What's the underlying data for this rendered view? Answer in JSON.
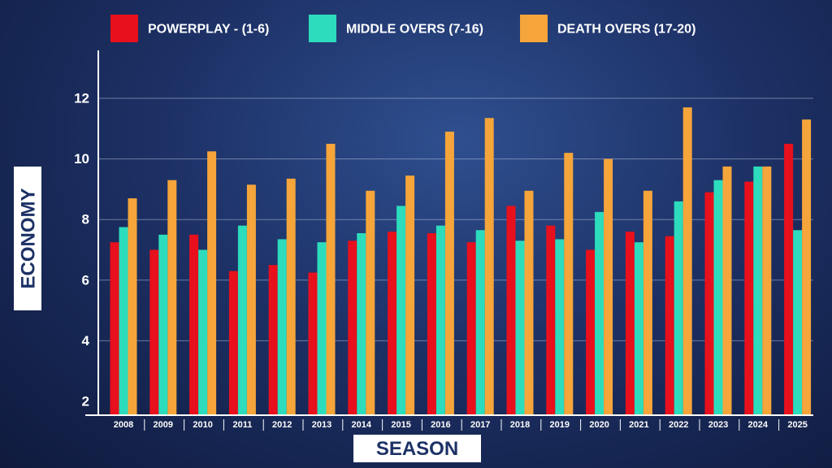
{
  "chart_data": {
    "type": "bar",
    "categories": [
      "2008",
      "2009",
      "2010",
      "2011",
      "2012",
      "2013",
      "2014",
      "2015",
      "2016",
      "2017",
      "2018",
      "2019",
      "2020",
      "2021",
      "2022",
      "2023",
      "2024",
      "2025"
    ],
    "series": [
      {
        "name": "POWERPLAY - (1-6)",
        "color": "#e8101c",
        "values": [
          7.25,
          7.0,
          7.5,
          6.3,
          6.5,
          6.25,
          7.3,
          7.6,
          7.55,
          7.25,
          8.45,
          7.8,
          7.0,
          7.6,
          7.45,
          8.9,
          9.25,
          10.5
        ]
      },
      {
        "name": "MIDDLE OVERS (7-16)",
        "color": "#2cdcbc",
        "values": [
          7.75,
          7.5,
          7.0,
          7.8,
          7.35,
          7.25,
          7.55,
          8.45,
          7.8,
          7.65,
          7.3,
          7.35,
          8.25,
          7.25,
          8.6,
          9.3,
          9.75,
          7.65
        ]
      },
      {
        "name": "DEATH OVERS (17-20)",
        "color": "#f5a53a",
        "values": [
          8.7,
          9.3,
          10.25,
          9.15,
          9.35,
          10.5,
          8.95,
          9.45,
          10.9,
          11.35,
          8.95,
          10.2,
          10.0,
          8.95,
          11.7,
          9.75,
          9.75,
          11.3
        ]
      }
    ],
    "title": "",
    "xlabel": "SEASON",
    "ylabel": "ECONOMY",
    "yticks": [
      2,
      4,
      6,
      8,
      10,
      12
    ],
    "ylim": [
      1.5,
      13.5
    ],
    "grid": true,
    "legend_position": "top"
  }
}
